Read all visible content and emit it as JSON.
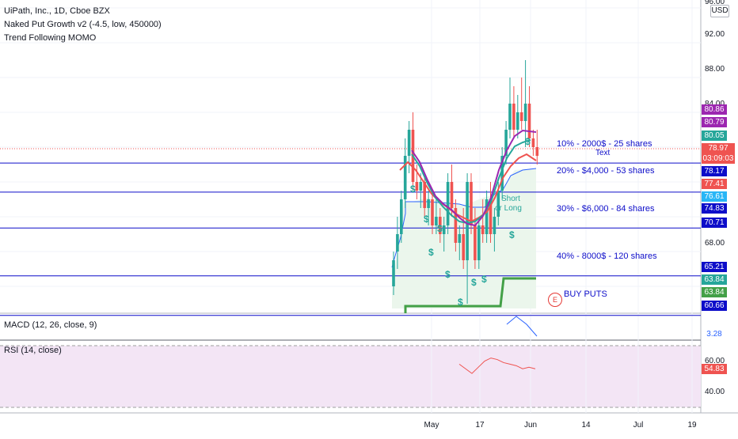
{
  "header": {
    "symbol_line": "UiPath, Inc., 1D, Cboe BZX",
    "indicator1": "Naked Put Growth v2 (-4.5, low, 450000)",
    "indicator2": "Trend Following MOMO",
    "currency": "USD"
  },
  "price_axis": {
    "ticks": [
      "96.00",
      "92.00",
      "88.00",
      "84.00",
      "68.00"
    ]
  },
  "badges": [
    {
      "text": "80.86",
      "color": "#9c27b0"
    },
    {
      "text": "80.79",
      "color": "#9c27b0"
    },
    {
      "text": "80.05",
      "color": "#26a69a"
    },
    {
      "text": "78.97",
      "color": "#ef5350"
    },
    {
      "text": "03:09:03",
      "color": "#ef5350"
    },
    {
      "text": "78.17",
      "color": "#0d0dc9"
    },
    {
      "text": "77.41",
      "color": "#ef5350"
    },
    {
      "text": "76.61",
      "color": "#29b6f6"
    },
    {
      "text": "74.83",
      "color": "#0d0dc9"
    },
    {
      "text": "70.71",
      "color": "#0d0dc9"
    },
    {
      "text": "65.21",
      "color": "#0d0dc9"
    },
    {
      "text": "63.84",
      "color": "#26a69a"
    },
    {
      "text": "63.84",
      "color": "#43a047"
    },
    {
      "text": "60.66",
      "color": "#0d0dc9"
    }
  ],
  "annotations": {
    "level1": "10% - 2000$ - 25 shares",
    "text_label": "Text",
    "level2": "20% - $4,000 - 53 shares",
    "level3": "30% - $6,000 - 84 shares",
    "level4": "40% - 8000$ - 120 shares",
    "buy_puts": "BUY PUTS",
    "earnings_marker": "E",
    "short_label": "Short",
    "long_label": "or Long",
    "dollar_sign": "$"
  },
  "macd": {
    "title": "MACD (12, 26, close, 9)",
    "value": "3.28"
  },
  "rsi": {
    "title": "RSI (14, close)",
    "value": "54.83",
    "ticks": [
      "60.00",
      "40.00"
    ]
  },
  "time_axis": [
    "May",
    "17",
    "Jun",
    "14",
    "Jul",
    "19"
  ],
  "chart_data": {
    "type": "candlestick",
    "title": "UiPath, Inc., 1D, Cboe BZX",
    "ylabel": "USD",
    "ylim": [
      59,
      97
    ],
    "horizontal_levels": [
      78.17,
      74.83,
      70.71,
      65.21,
      60.66
    ],
    "candles": [
      {
        "o": 64,
        "h": 68,
        "l": 63,
        "c": 67
      },
      {
        "o": 68,
        "h": 72,
        "l": 66,
        "c": 70
      },
      {
        "o": 70,
        "h": 75,
        "l": 69,
        "c": 74
      },
      {
        "o": 74,
        "h": 81,
        "l": 73,
        "c": 79
      },
      {
        "o": 79,
        "h": 83,
        "l": 77,
        "c": 82
      },
      {
        "o": 82,
        "h": 84,
        "l": 75,
        "c": 76
      },
      {
        "o": 76,
        "h": 78,
        "l": 74,
        "c": 75
      },
      {
        "o": 75,
        "h": 77,
        "l": 73,
        "c": 76
      },
      {
        "o": 76,
        "h": 77,
        "l": 72,
        "c": 73
      },
      {
        "o": 73,
        "h": 75,
        "l": 71,
        "c": 74
      },
      {
        "o": 74,
        "h": 75,
        "l": 70,
        "c": 71
      },
      {
        "o": 71,
        "h": 74,
        "l": 70,
        "c": 72
      },
      {
        "o": 72,
        "h": 73,
        "l": 69,
        "c": 70
      },
      {
        "o": 70,
        "h": 72,
        "l": 68,
        "c": 71
      },
      {
        "o": 71,
        "h": 77,
        "l": 70,
        "c": 76
      },
      {
        "o": 76,
        "h": 78,
        "l": 72,
        "c": 73
      },
      {
        "o": 73,
        "h": 74,
        "l": 68,
        "c": 69
      },
      {
        "o": 69,
        "h": 71,
        "l": 67,
        "c": 70
      },
      {
        "o": 70,
        "h": 73,
        "l": 66,
        "c": 67
      },
      {
        "o": 67,
        "h": 77,
        "l": 62,
        "c": 76
      },
      {
        "o": 76,
        "h": 77,
        "l": 70,
        "c": 71
      },
      {
        "o": 71,
        "h": 73,
        "l": 66,
        "c": 67
      },
      {
        "o": 67,
        "h": 72,
        "l": 66,
        "c": 71
      },
      {
        "o": 71,
        "h": 74,
        "l": 69,
        "c": 70
      },
      {
        "o": 70,
        "h": 75,
        "l": 69,
        "c": 74
      },
      {
        "o": 74,
        "h": 76,
        "l": 69,
        "c": 70
      },
      {
        "o": 70,
        "h": 73,
        "l": 68,
        "c": 72
      },
      {
        "o": 72,
        "h": 76,
        "l": 71,
        "c": 75
      },
      {
        "o": 75,
        "h": 80,
        "l": 74,
        "c": 79
      },
      {
        "o": 79,
        "h": 83,
        "l": 78,
        "c": 82
      },
      {
        "o": 82,
        "h": 88,
        "l": 81,
        "c": 85
      },
      {
        "o": 85,
        "h": 87,
        "l": 81,
        "c": 82
      },
      {
        "o": 82,
        "h": 86,
        "l": 81,
        "c": 84
      },
      {
        "o": 84,
        "h": 88,
        "l": 82,
        "c": 83
      },
      {
        "o": 83,
        "h": 90,
        "l": 80,
        "c": 85
      },
      {
        "o": 85,
        "h": 87,
        "l": 80,
        "c": 81
      },
      {
        "o": 81,
        "h": 82,
        "l": 79,
        "c": 80
      },
      {
        "o": 80,
        "h": 82,
        "l": 78,
        "c": 79
      }
    ],
    "rsi_values": [
      58,
      55,
      52,
      56,
      60,
      62,
      61,
      59,
      58,
      57,
      55,
      56,
      55
    ]
  }
}
